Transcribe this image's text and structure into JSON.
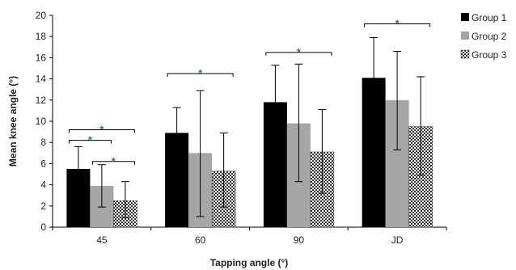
{
  "chart_data": {
    "type": "bar",
    "title": "",
    "xlabel": "Tapping angle (°)",
    "ylabel": "Mean knee angle (°)",
    "ylim": [
      0,
      20
    ],
    "yticks": [
      0,
      2,
      4,
      6,
      8,
      10,
      12,
      14,
      16,
      18,
      20
    ],
    "categories": [
      "45",
      "60",
      "90",
      "JD"
    ],
    "grid": false,
    "legend_position": "top-right",
    "series": [
      {
        "name": "Group 1",
        "fill": "solid-black",
        "color": "#000000",
        "values": [
          5.5,
          8.9,
          11.8,
          14.1
        ],
        "error": [
          [
            3.6,
            7.6
          ],
          [
            6.5,
            11.3
          ],
          [
            8.4,
            15.3
          ],
          [
            10.4,
            17.9
          ]
        ]
      },
      {
        "name": "Group 2",
        "fill": "solid-gray",
        "color": "#a6a6a6",
        "values": [
          3.9,
          7.0,
          9.8,
          12.0
        ],
        "error": [
          [
            1.9,
            5.9
          ],
          [
            1.0,
            12.9
          ],
          [
            4.3,
            15.4
          ],
          [
            7.3,
            16.6
          ]
        ]
      },
      {
        "name": "Group 3",
        "fill": "checker-pattern",
        "color": "#555555",
        "values": [
          2.5,
          5.3,
          7.1,
          9.5
        ],
        "error": [
          [
            0.9,
            4.3
          ],
          [
            1.9,
            8.9
          ],
          [
            3.2,
            11.1
          ],
          [
            4.9,
            14.2
          ]
        ]
      }
    ],
    "significance": [
      {
        "symbol": "*",
        "category": "45",
        "from_series": 0,
        "to_series": 2,
        "y": 9.2
      },
      {
        "symbol": "*",
        "category": "45",
        "from_series": 0,
        "to_series": 1,
        "y": 8.2
      },
      {
        "symbol": "*",
        "category": "45",
        "from_series": 1,
        "to_series": 2,
        "y": 6.2
      },
      {
        "symbol": "*",
        "category": "60",
        "from_series": 0,
        "to_series": 2,
        "y": 14.5
      },
      {
        "symbol": "*",
        "category": "90",
        "from_series": 0,
        "to_series": 2,
        "y": 16.5
      },
      {
        "symbol": "*",
        "category": "JD",
        "from_series": 0,
        "to_series": 2,
        "y": 19.2
      }
    ],
    "significance_color": "#2e7d4f"
  }
}
